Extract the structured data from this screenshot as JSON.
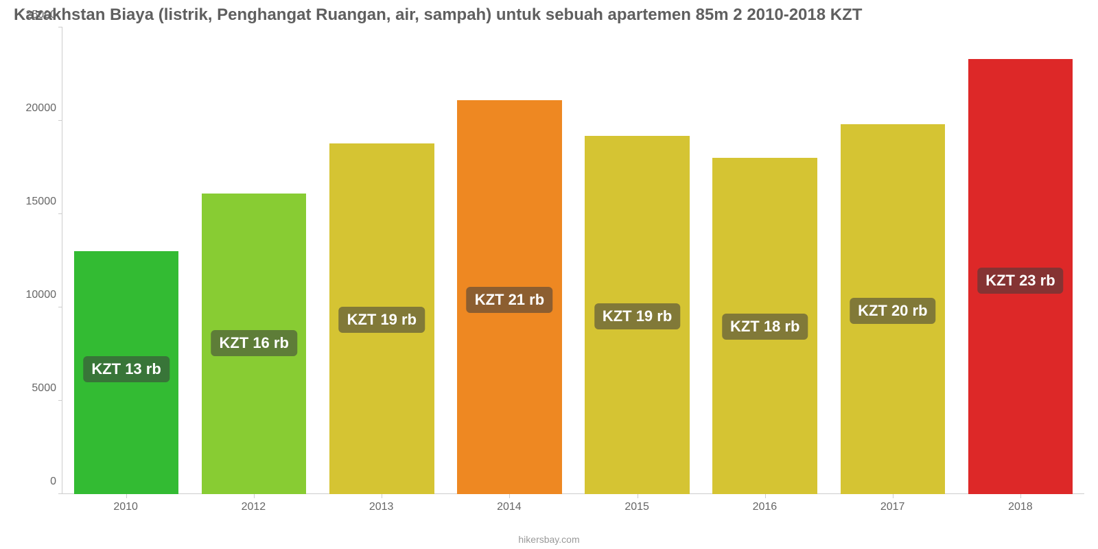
{
  "chart": {
    "type": "bar",
    "title": "Kazakhstan Biaya (listrik, Penghangat Ruangan, air, sampah) untuk sebuah apartemen 85m 2 2010-2018 KZT",
    "title_fontsize": 24,
    "title_color": "#5f5f5f",
    "background_color": "#ffffff",
    "axis_color": "#cccccc",
    "tick_label_color": "#666666",
    "tick_label_fontsize": 16,
    "ylim": [
      0,
      25000
    ],
    "ytick_step": 5000,
    "yticks": [
      0,
      5000,
      10000,
      15000,
      20000,
      25000
    ],
    "categories": [
      "2010",
      "2012",
      "2013",
      "2014",
      "2015",
      "2016",
      "2017",
      "2018"
    ],
    "values": [
      13000,
      16100,
      18800,
      21100,
      19200,
      18000,
      19800,
      23300
    ],
    "value_labels": [
      "KZT 13 rb",
      "KZT 16 rb",
      "KZT 19 rb",
      "KZT 21 rb",
      "KZT 19 rb",
      "KZT 18 rb",
      "KZT 20 rb",
      "KZT 23 rb"
    ],
    "bar_colors": [
      "#33bb33",
      "#88cc33",
      "#d5c433",
      "#ee8822",
      "#d5c433",
      "#d5c433",
      "#d5c433",
      "#dd2828"
    ],
    "bar_width": 0.82,
    "value_label_box_bg": "rgba(60,60,60,0.55)",
    "value_label_color": "#ffffff",
    "value_label_fontsize": 22,
    "source": "hikersbay.com",
    "source_color": "#999999",
    "source_fontsize": 14
  }
}
